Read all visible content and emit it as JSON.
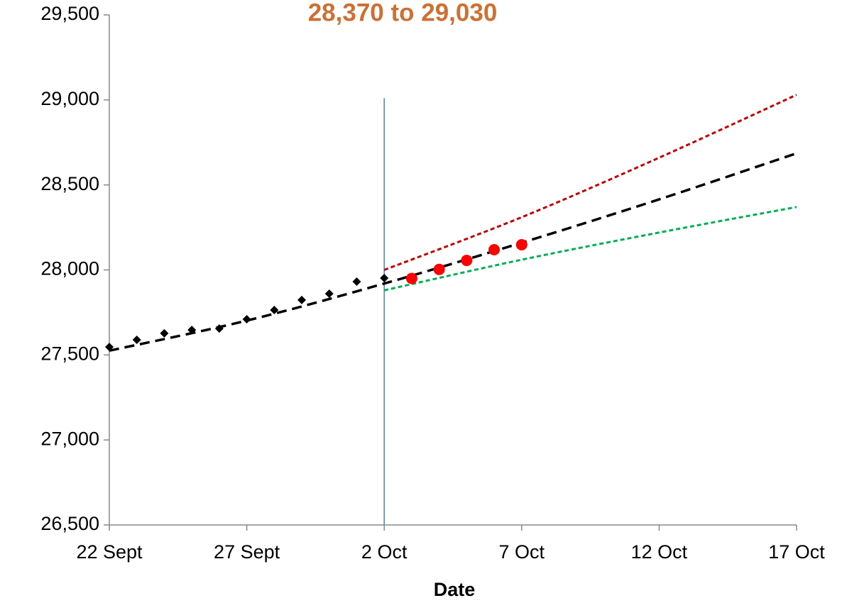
{
  "chart_data": {
    "type": "line",
    "title": "28,370 to 29,030",
    "x_label": "Date",
    "xlim": [
      0,
      25
    ],
    "xticks": [
      {
        "value": 0,
        "label": "22 Sept"
      },
      {
        "value": 5,
        "label": "27 Sept"
      },
      {
        "value": 10,
        "label": "2 Oct"
      },
      {
        "value": 15,
        "label": "7 Oct"
      },
      {
        "value": 20,
        "label": "12 Oct"
      },
      {
        "value": 25,
        "label": "17 Oct"
      }
    ],
    "ylim": [
      26500,
      29500
    ],
    "yticks": [
      {
        "value": 26500,
        "label": "26,500"
      },
      {
        "value": 27000,
        "label": "27,000"
      },
      {
        "value": 27500,
        "label": "27,500"
      },
      {
        "value": 28000,
        "label": "28,000"
      },
      {
        "value": 28500,
        "label": "28,500"
      },
      {
        "value": 29000,
        "label": "29,000"
      },
      {
        "value": 29500,
        "label": "29,500"
      }
    ],
    "grid": false,
    "forecast_line": {
      "x": 10,
      "y": [
        26500,
        29010
      ],
      "color": "#4a7fc1"
    },
    "series": [
      {
        "kind": "upper",
        "style": "dotted",
        "color": "#c00000",
        "x": [
          10,
          15,
          20,
          25
        ],
        "values": [
          28000,
          28310,
          28660,
          29030
        ]
      },
      {
        "kind": "lower",
        "style": "dotted",
        "color": "#00b050",
        "x": [
          10,
          15,
          20,
          25
        ],
        "values": [
          27880,
          28060,
          28220,
          28370
        ]
      },
      {
        "kind": "trend",
        "style": "dashed",
        "color": "#000000",
        "x": [
          0,
          5,
          10,
          15,
          20,
          25
        ],
        "values": [
          27525,
          27702,
          27920,
          28160,
          28415,
          28686
        ]
      },
      {
        "kind": "observed",
        "style": "diamond",
        "color": "#000000",
        "x": [
          0,
          1,
          2,
          3,
          4,
          5,
          6,
          7,
          8,
          9,
          10
        ],
        "values": [
          27547,
          27589,
          27627,
          27647,
          27655,
          27710,
          27764,
          27823,
          27860,
          27931,
          27952
        ]
      },
      {
        "kind": "actual",
        "style": "dot",
        "color": "#ff0000",
        "x": [
          11,
          12,
          13,
          14,
          15
        ],
        "values": [
          27950,
          28003,
          28056,
          28119,
          28148
        ]
      }
    ]
  }
}
